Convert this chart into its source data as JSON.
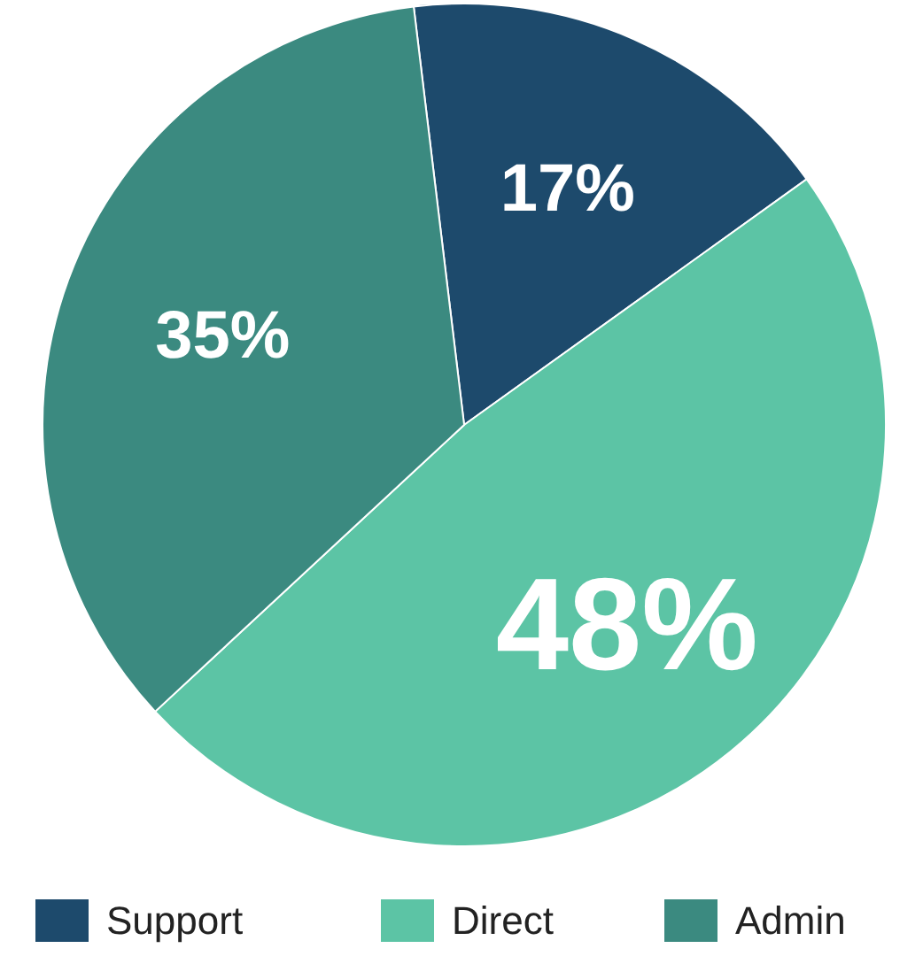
{
  "chart_data": {
    "type": "pie",
    "categories": [
      "Support",
      "Direct",
      "Admin"
    ],
    "values": [
      17,
      48,
      35
    ],
    "colors": [
      "#1d4a6c",
      "#5cc4a5",
      "#3b8a80"
    ],
    "data_labels": true,
    "value_labels": [
      "17%",
      "48%",
      "35%"
    ],
    "legend": "bottom"
  }
}
